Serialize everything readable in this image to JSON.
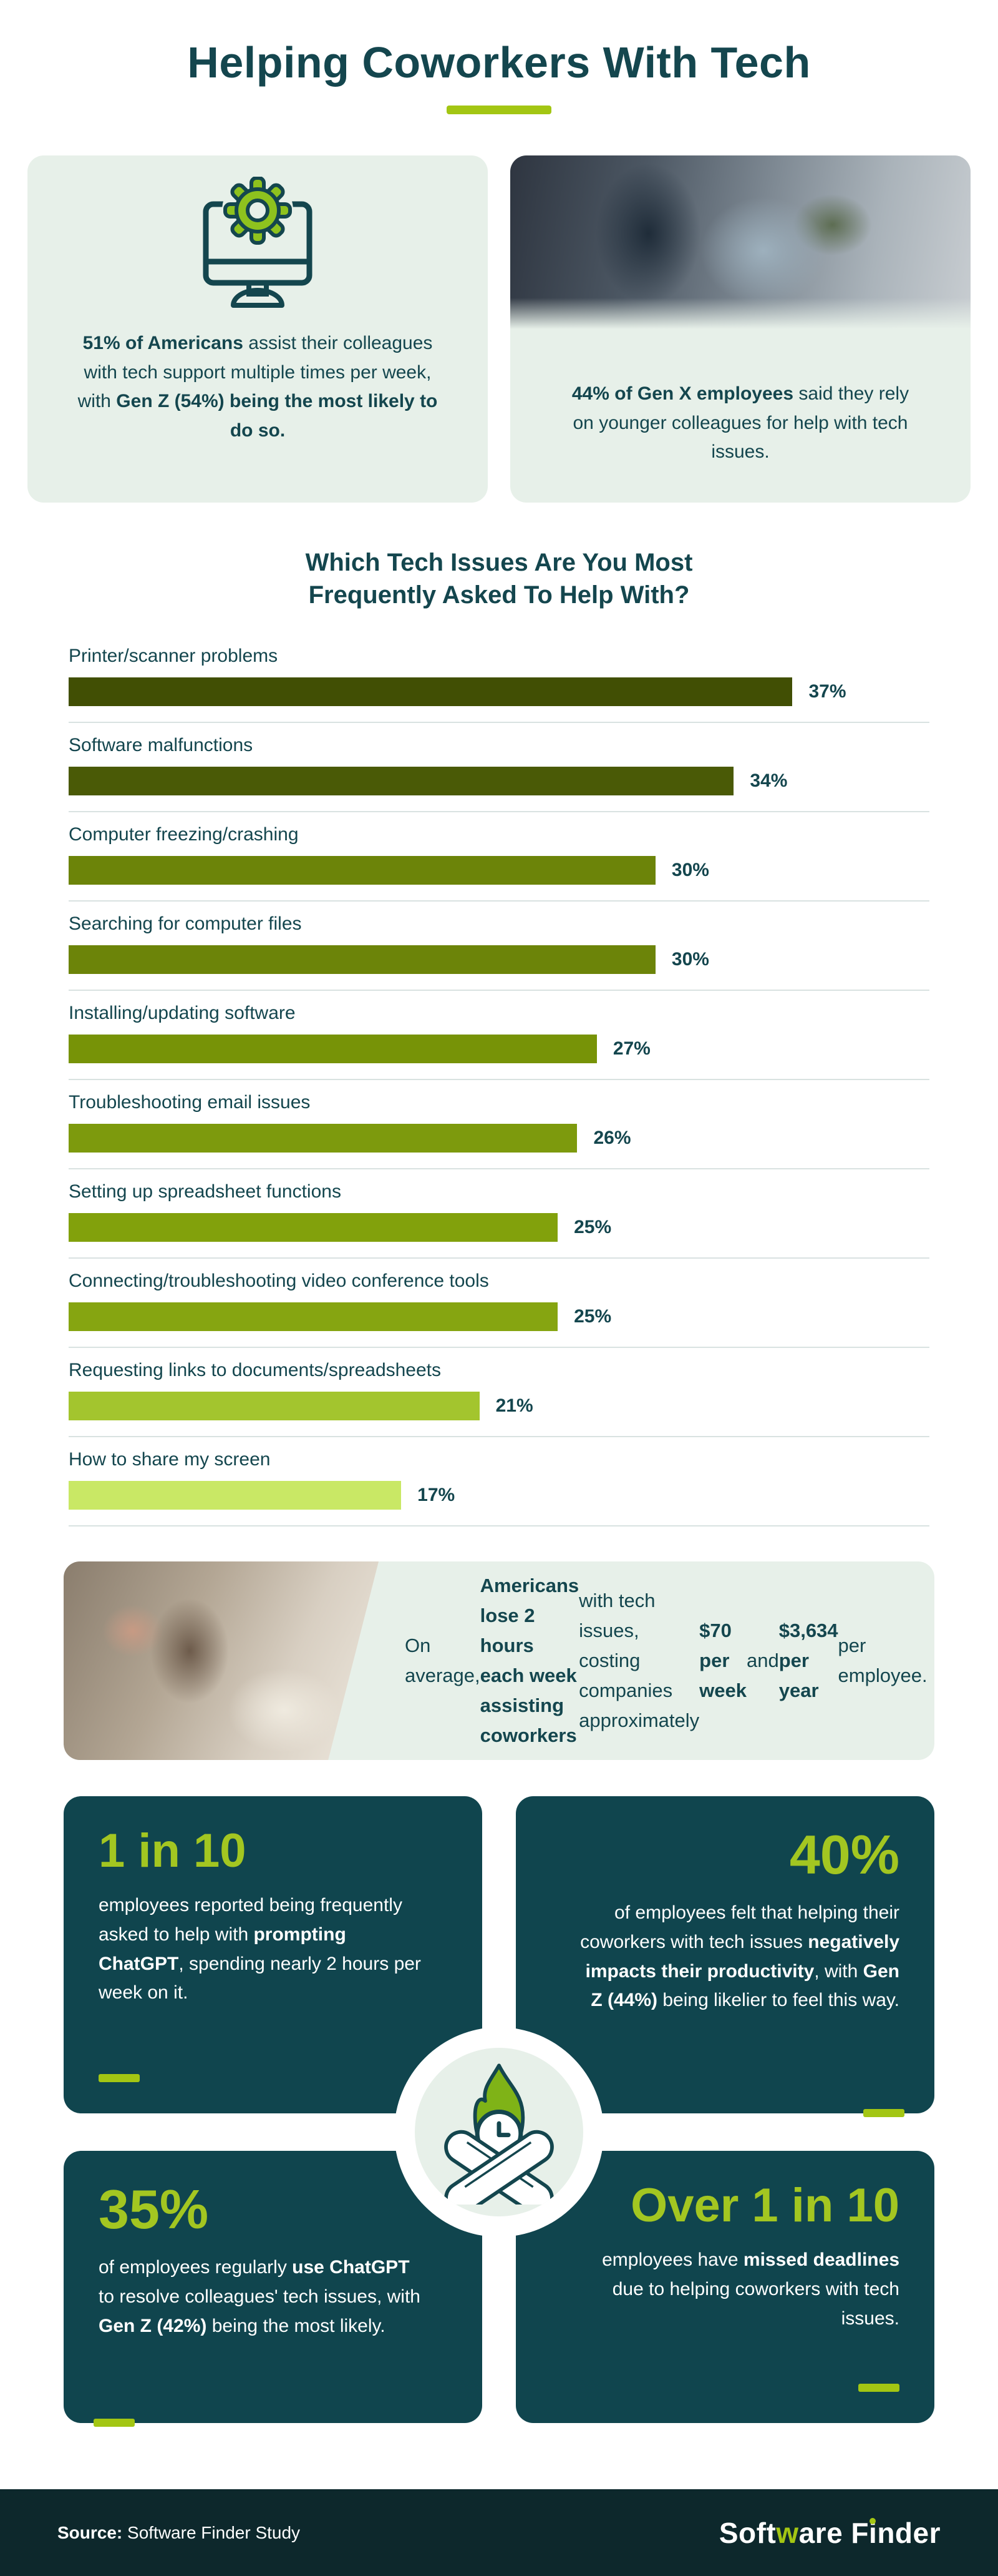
{
  "header": {
    "title": "Helping Coworkers With Tech"
  },
  "intro_cards": {
    "left": {
      "icon": "monitor-gear-icon",
      "text": [
        {
          "t": "51% of Americans",
          "b": true
        },
        {
          "t": " assist their colleagues with tech support multiple times per week, with "
        },
        {
          "t": "Gen Z (54%) being the most likely to do so.",
          "b": true
        }
      ]
    },
    "right": {
      "photo": "coworkers-helping-photo",
      "text": [
        {
          "t": "44% of Gen X employees",
          "b": true
        },
        {
          "t": " said they rely on younger colleagues for help with tech issues."
        }
      ]
    }
  },
  "chart_data": {
    "type": "bar",
    "orientation": "horizontal",
    "title": "Which Tech Issues Are You Most Frequently Asked To Help With?",
    "categories": [
      "Printer/scanner problems",
      "Software malfunctions",
      "Computer freezing/crashing",
      "Searching for computer files",
      "Installing/updating software",
      "Troubleshooting email issues",
      "Setting up spreadsheet functions",
      "Connecting/troubleshooting video conference tools",
      "Requesting links to documents/spreadsheets",
      "How to share my screen"
    ],
    "values": [
      37,
      34,
      30,
      30,
      27,
      26,
      25,
      25,
      21,
      17
    ],
    "value_labels": [
      "37%",
      "34%",
      "30%",
      "30%",
      "27%",
      "26%",
      "25%",
      "25%",
      "21%",
      "17%"
    ],
    "bar_colors": [
      "#414f04",
      "#4a5a06",
      "#6c8409",
      "#6c8409",
      "#779307",
      "#7d9a0d",
      "#82a10c",
      "#86a511",
      "#a3c52e",
      "#c9e865"
    ],
    "unit": "%",
    "xlim": [
      0,
      40
    ],
    "bar_scale_max": 44,
    "grid": false,
    "legend": "none"
  },
  "callout": {
    "photo": "stressed-employee-photo",
    "text": [
      {
        "t": "On average, "
      },
      {
        "t": "Americans lose 2 hours each week assisting coworkers",
        "b": true
      },
      {
        "t": " with tech issues, costing companies approximately "
      },
      {
        "t": "$70 per week",
        "b": true
      },
      {
        "t": " and "
      },
      {
        "t": "$3,634 per year",
        "b": true
      },
      {
        "t": " per employee."
      }
    ]
  },
  "stat_grid": {
    "badge_icon": "no-time-crossed-hands-flame-clock-icon",
    "cards": [
      {
        "headline": "1 in 10",
        "align": "left",
        "text": [
          {
            "t": "employees reported being frequently asked to help with "
          },
          {
            "t": "prompting ChatGPT",
            "b": true
          },
          {
            "t": ", spending nearly 2 hours per week on it."
          }
        ]
      },
      {
        "headline": "40%",
        "align": "right",
        "text": [
          {
            "t": "of employees felt that helping their coworkers with tech issues "
          },
          {
            "t": "negatively impacts their productivity",
            "b": true
          },
          {
            "t": ", with "
          },
          {
            "t": "Gen Z (44%)",
            "b": true
          },
          {
            "t": " being likelier to feel this way."
          }
        ]
      },
      {
        "headline": "35%",
        "align": "left",
        "text": [
          {
            "t": "of employees regularly "
          },
          {
            "t": "use ChatGPT",
            "b": true
          },
          {
            "t": " to resolve colleagues' tech issues, with "
          },
          {
            "t": "Gen Z (42%)",
            "b": true
          },
          {
            "t": " being the most likely."
          }
        ]
      },
      {
        "headline": "Over 1 in 10",
        "align": "right",
        "text": [
          {
            "t": "employees have "
          },
          {
            "t": "missed deadlines",
            "b": true
          },
          {
            "t": " due to helping coworkers with tech issues."
          }
        ]
      }
    ]
  },
  "footer": {
    "source_label": "Source:",
    "source_text": " Software Finder Study",
    "logo": {
      "p1": "Soft",
      "p2": "w",
      "p3": "are F",
      "p4": "i",
      "p5": "nder"
    }
  },
  "colors": {
    "teal": "#14464e",
    "card_teal": "#10454e",
    "mint": "#e7f0e9",
    "lime": "#a3c613",
    "lime_number": "#a3c621",
    "gear_lime": "#8ec21e",
    "divider": "#d9e2e1",
    "footer_bg": "#0d282c"
  }
}
